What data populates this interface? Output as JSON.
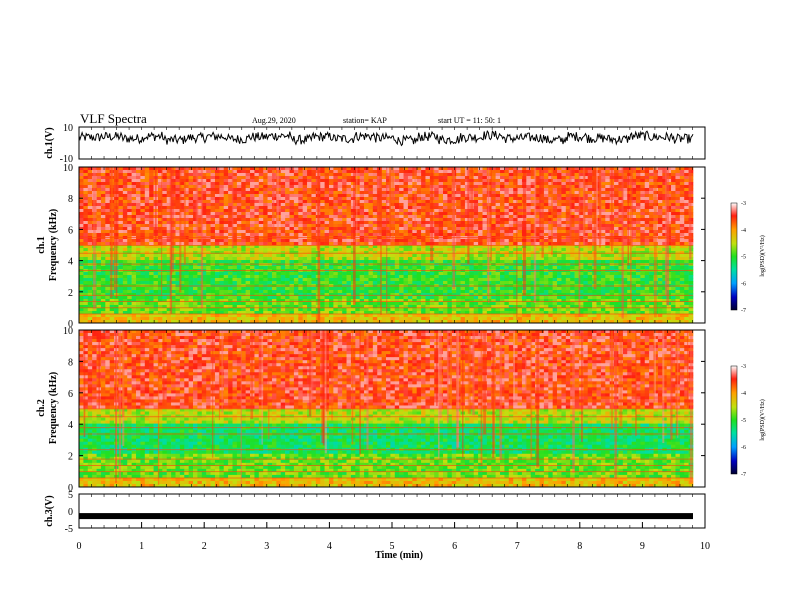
{
  "header": {
    "title": "VLF Spectra",
    "date": "Aug.29, 2020",
    "station": "station= KAP",
    "start": "start  UT =   11: 50: 1"
  },
  "chart_data": [
    {
      "type": "line",
      "panel": "ch1-waveform",
      "ylabel": "ch.1(V)",
      "ylim": [
        -10,
        10
      ],
      "yticks": [
        "10",
        "-10"
      ],
      "xlim": [
        0,
        10
      ],
      "series": [
        {
          "values": [
            3.5,
            4,
            2.8,
            4.2,
            1.9,
            3.3,
            4.1,
            2.5,
            3.8,
            4.5,
            2,
            3.9,
            2.7,
            4.3,
            3.1,
            1.5,
            4,
            2.2,
            3.6,
            4.8,
            2.9,
            3.4,
            1.8,
            4.1,
            3,
            2.3,
            4.4,
            3.7,
            2.6,
            3.2
          ]
        }
      ]
    },
    {
      "type": "heatmap",
      "panel": "ch1-spectrogram",
      "ylabel": "ch.1\nFrequency (kHz)",
      "ylim": [
        0,
        10
      ],
      "yticks": [
        "0",
        "2",
        "4",
        "6",
        "8",
        "10"
      ],
      "xlim": [
        0,
        10
      ],
      "colorbar": {
        "label": "log(PSD)(V²/Hz)",
        "ticks": [
          "-3",
          "-4",
          "-5",
          "-6",
          "-7"
        ],
        "range": [
          -7,
          -3
        ]
      }
    },
    {
      "type": "heatmap",
      "panel": "ch2-spectrogram",
      "ylabel": "ch.2\nFrequency (kHz)",
      "ylim": [
        0,
        10
      ],
      "yticks": [
        "0",
        "2",
        "4",
        "6",
        "8",
        "10"
      ],
      "xlim": [
        0,
        10
      ],
      "colorbar": {
        "label": "log(PSD)(V²/Hz)",
        "ticks": [
          "-3",
          "-4",
          "-5",
          "-6",
          "-7"
        ],
        "range": [
          -7,
          -3
        ]
      }
    },
    {
      "type": "line",
      "panel": "ch3-waveform",
      "ylabel": "ch.3(V)",
      "ylim": [
        -5,
        5
      ],
      "yticks": [
        "5",
        "0",
        "-5"
      ],
      "xlim": [
        0,
        10
      ],
      "xlabel": "Time  (min)",
      "xticks": [
        "0",
        "1",
        "2",
        "3",
        "4",
        "5",
        "6",
        "7",
        "8",
        "9",
        "10"
      ],
      "series": [
        {
          "values": [
            -1.5
          ]
        }
      ]
    }
  ],
  "colors": {
    "spectrum_high": "#e81010",
    "spectrum_mid": "#22e048",
    "spectrum_low": "#0a1a8c",
    "trace": "#000000"
  }
}
